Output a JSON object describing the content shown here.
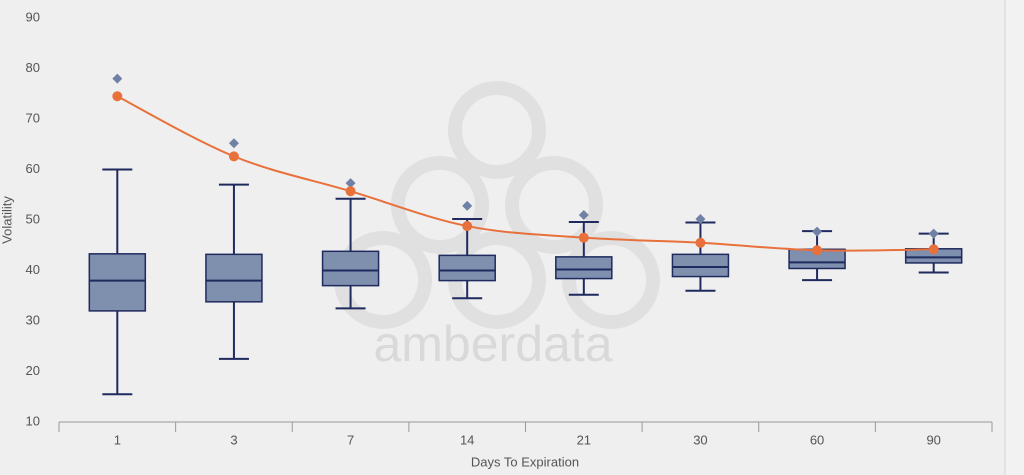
{
  "chart_data": {
    "type": "box",
    "watermark": "amberdata",
    "xlabel": "Days To Expiration",
    "ylabel": "Volatility",
    "categories": [
      "1",
      "3",
      "7",
      "14",
      "21",
      "30",
      "60",
      "90"
    ],
    "ylim": [
      10,
      90
    ],
    "yticks": [
      10,
      20,
      30,
      40,
      50,
      60,
      70,
      80,
      90
    ],
    "boxes": {
      "color": "#7f8fae",
      "edge_color": "#1f2a5e",
      "low": [
        15.5,
        22.5,
        32.5,
        34.5,
        35.2,
        36,
        38.1,
        39.6
      ],
      "q1": [
        32,
        33.8,
        37,
        38,
        38.4,
        38.8,
        40.4,
        41.5
      ],
      "median": [
        38,
        38,
        40,
        40,
        40.2,
        40.7,
        41.6,
        42.6
      ],
      "q3": [
        43.3,
        43.2,
        43.8,
        43,
        42.7,
        43.2,
        44.2,
        44.3
      ],
      "high": [
        60,
        57,
        54.2,
        50.2,
        49.6,
        49.5,
        47.8,
        47.3
      ],
      "outliers": [
        78,
        65.2,
        57.3,
        52.8,
        51,
        50.2,
        47.7,
        47.3
      ],
      "outlier_color": "#6f82a6"
    },
    "line": {
      "color": "#e8703a",
      "values": [
        74.5,
        62.6,
        55.7,
        48.8,
        46.5,
        45.5,
        44,
        44.2
      ]
    }
  }
}
